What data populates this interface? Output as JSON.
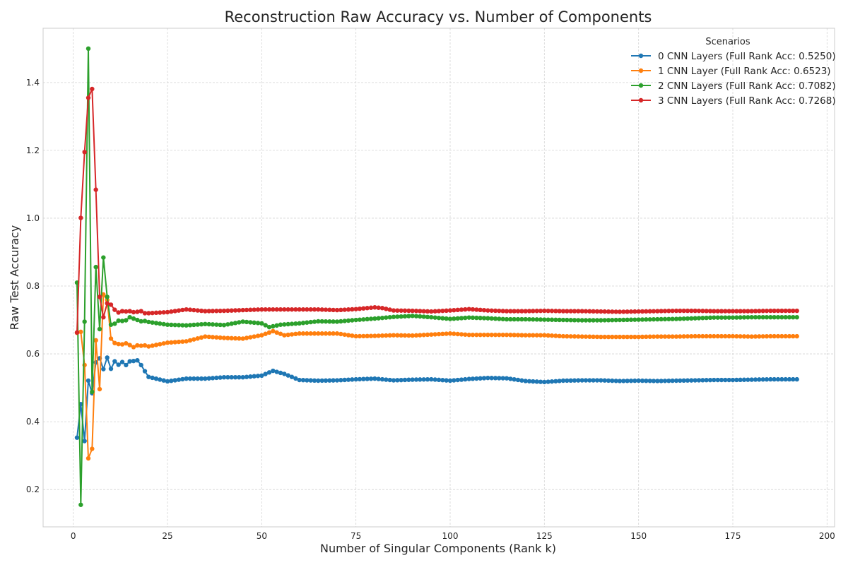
{
  "chart_data": {
    "type": "line",
    "title": "Reconstruction Raw Accuracy vs. Number of Components",
    "xlabel": "Number of Singular Components (Rank k)",
    "ylabel": "Raw Test Accuracy",
    "xlim": [
      -8,
      202
    ],
    "ylim": [
      0.09,
      1.56
    ],
    "xticks": [
      0,
      25,
      50,
      75,
      100,
      125,
      150,
      175,
      200
    ],
    "yticks": [
      0.2,
      0.4,
      0.6,
      0.8,
      1.0,
      1.2,
      1.4
    ],
    "xtick_labels": [
      "0",
      "25",
      "50",
      "75",
      "100",
      "125",
      "150",
      "175",
      "200"
    ],
    "ytick_labels": [
      "0.2",
      "0.4",
      "0.6",
      "0.8",
      "1.0",
      "1.2",
      "1.4"
    ],
    "grid": true,
    "legend": {
      "title": "Scenarios",
      "placement": "top-right"
    },
    "series": [
      {
        "name": "0 CNN Layers (Full Rank Acc: 0.5250)",
        "color": "#1f77b4",
        "points": [
          [
            1,
            0.353
          ],
          [
            2,
            0.452
          ],
          [
            3,
            0.343
          ],
          [
            4,
            0.521
          ],
          [
            5,
            0.484
          ],
          [
            6,
            0.575
          ],
          [
            7,
            0.587
          ],
          [
            8,
            0.555
          ],
          [
            9,
            0.589
          ],
          [
            10,
            0.556
          ],
          [
            11,
            0.578
          ],
          [
            12,
            0.568
          ],
          [
            13,
            0.576
          ],
          [
            14,
            0.567
          ],
          [
            15,
            0.578
          ],
          [
            16,
            0.579
          ],
          [
            17,
            0.581
          ],
          [
            18,
            0.567
          ],
          [
            19,
            0.549
          ],
          [
            20,
            0.532
          ],
          [
            25,
            0.519
          ],
          [
            30,
            0.527
          ],
          [
            35,
            0.527
          ],
          [
            40,
            0.531
          ],
          [
            45,
            0.531
          ],
          [
            50,
            0.536
          ],
          [
            53,
            0.55
          ],
          [
            56,
            0.541
          ],
          [
            60,
            0.523
          ],
          [
            65,
            0.521
          ],
          [
            70,
            0.522
          ],
          [
            75,
            0.525
          ],
          [
            80,
            0.527
          ],
          [
            85,
            0.522
          ],
          [
            90,
            0.524
          ],
          [
            95,
            0.525
          ],
          [
            100,
            0.521
          ],
          [
            105,
            0.526
          ],
          [
            110,
            0.529
          ],
          [
            115,
            0.528
          ],
          [
            120,
            0.52
          ],
          [
            125,
            0.517
          ],
          [
            130,
            0.521
          ],
          [
            135,
            0.522
          ],
          [
            140,
            0.522
          ],
          [
            145,
            0.52
          ],
          [
            150,
            0.521
          ],
          [
            155,
            0.52
          ],
          [
            160,
            0.521
          ],
          [
            165,
            0.522
          ],
          [
            170,
            0.523
          ],
          [
            175,
            0.523
          ],
          [
            180,
            0.524
          ],
          [
            185,
            0.525
          ],
          [
            192,
            0.525
          ]
        ]
      },
      {
        "name": "1 CNN Layer (Full Rank Acc: 0.6523)",
        "color": "#ff7f0e",
        "points": [
          [
            1,
            0.662
          ],
          [
            2,
            0.665
          ],
          [
            3,
            0.567
          ],
          [
            4,
            0.292
          ],
          [
            5,
            0.32
          ],
          [
            6,
            0.64
          ],
          [
            7,
            0.496
          ],
          [
            8,
            0.775
          ],
          [
            9,
            0.759
          ],
          [
            10,
            0.645
          ],
          [
            11,
            0.632
          ],
          [
            12,
            0.629
          ],
          [
            13,
            0.628
          ],
          [
            14,
            0.631
          ],
          [
            15,
            0.626
          ],
          [
            16,
            0.62
          ],
          [
            17,
            0.625
          ],
          [
            18,
            0.624
          ],
          [
            19,
            0.625
          ],
          [
            20,
            0.622
          ],
          [
            25,
            0.633
          ],
          [
            30,
            0.637
          ],
          [
            35,
            0.651
          ],
          [
            40,
            0.647
          ],
          [
            45,
            0.645
          ],
          [
            50,
            0.655
          ],
          [
            53,
            0.667
          ],
          [
            56,
            0.655
          ],
          [
            60,
            0.66
          ],
          [
            65,
            0.66
          ],
          [
            70,
            0.66
          ],
          [
            75,
            0.652
          ],
          [
            80,
            0.653
          ],
          [
            85,
            0.655
          ],
          [
            90,
            0.654
          ],
          [
            95,
            0.657
          ],
          [
            100,
            0.66
          ],
          [
            105,
            0.656
          ],
          [
            110,
            0.656
          ],
          [
            115,
            0.656
          ],
          [
            120,
            0.655
          ],
          [
            125,
            0.655
          ],
          [
            130,
            0.652
          ],
          [
            135,
            0.651
          ],
          [
            140,
            0.65
          ],
          [
            145,
            0.65
          ],
          [
            150,
            0.65
          ],
          [
            155,
            0.651
          ],
          [
            160,
            0.651
          ],
          [
            165,
            0.652
          ],
          [
            170,
            0.652
          ],
          [
            175,
            0.652
          ],
          [
            180,
            0.651
          ],
          [
            185,
            0.652
          ],
          [
            192,
            0.652
          ]
        ]
      },
      {
        "name": "2 CNN Layers (Full Rank Acc: 0.7082)",
        "color": "#2ca02c",
        "points": [
          [
            1,
            0.81
          ],
          [
            2,
            0.155
          ],
          [
            3,
            0.695
          ],
          [
            4,
            1.5
          ],
          [
            5,
            0.488
          ],
          [
            6,
            0.856
          ],
          [
            7,
            0.673
          ],
          [
            8,
            0.884
          ],
          [
            9,
            0.768
          ],
          [
            10,
            0.686
          ],
          [
            11,
            0.689
          ],
          [
            12,
            0.698
          ],
          [
            13,
            0.697
          ],
          [
            14,
            0.699
          ],
          [
            15,
            0.708
          ],
          [
            16,
            0.704
          ],
          [
            17,
            0.7
          ],
          [
            18,
            0.696
          ],
          [
            19,
            0.697
          ],
          [
            20,
            0.694
          ],
          [
            25,
            0.686
          ],
          [
            30,
            0.684
          ],
          [
            35,
            0.688
          ],
          [
            40,
            0.685
          ],
          [
            45,
            0.695
          ],
          [
            50,
            0.69
          ],
          [
            52,
            0.679
          ],
          [
            55,
            0.686
          ],
          [
            60,
            0.69
          ],
          [
            65,
            0.696
          ],
          [
            70,
            0.695
          ],
          [
            75,
            0.7
          ],
          [
            80,
            0.704
          ],
          [
            85,
            0.709
          ],
          [
            90,
            0.712
          ],
          [
            95,
            0.708
          ],
          [
            100,
            0.703
          ],
          [
            105,
            0.707
          ],
          [
            110,
            0.705
          ],
          [
            115,
            0.702
          ],
          [
            120,
            0.702
          ],
          [
            125,
            0.701
          ],
          [
            130,
            0.7
          ],
          [
            135,
            0.699
          ],
          [
            140,
            0.699
          ],
          [
            145,
            0.7
          ],
          [
            150,
            0.701
          ],
          [
            155,
            0.702
          ],
          [
            160,
            0.703
          ],
          [
            165,
            0.705
          ],
          [
            170,
            0.707
          ],
          [
            175,
            0.707
          ],
          [
            180,
            0.708
          ],
          [
            185,
            0.708
          ],
          [
            192,
            0.708
          ]
        ]
      },
      {
        "name": "3 CNN Layers (Full Rank Acc: 0.7268)",
        "color": "#d62728",
        "points": [
          [
            1,
            0.663
          ],
          [
            2,
            1.001
          ],
          [
            3,
            1.195
          ],
          [
            4,
            1.355
          ],
          [
            5,
            1.381
          ],
          [
            6,
            1.084
          ],
          [
            7,
            0.768
          ],
          [
            8,
            0.708
          ],
          [
            9,
            0.749
          ],
          [
            10,
            0.745
          ],
          [
            11,
            0.73
          ],
          [
            12,
            0.722
          ],
          [
            13,
            0.726
          ],
          [
            14,
            0.725
          ],
          [
            15,
            0.726
          ],
          [
            16,
            0.723
          ],
          [
            17,
            0.724
          ],
          [
            18,
            0.726
          ],
          [
            19,
            0.72
          ],
          [
            20,
            0.72
          ],
          [
            25,
            0.723
          ],
          [
            30,
            0.731
          ],
          [
            35,
            0.726
          ],
          [
            40,
            0.727
          ],
          [
            45,
            0.729
          ],
          [
            50,
            0.731
          ],
          [
            55,
            0.731
          ],
          [
            60,
            0.731
          ],
          [
            65,
            0.731
          ],
          [
            70,
            0.729
          ],
          [
            75,
            0.732
          ],
          [
            80,
            0.737
          ],
          [
            82,
            0.735
          ],
          [
            85,
            0.728
          ],
          [
            90,
            0.727
          ],
          [
            95,
            0.725
          ],
          [
            100,
            0.728
          ],
          [
            105,
            0.732
          ],
          [
            110,
            0.728
          ],
          [
            115,
            0.726
          ],
          [
            120,
            0.726
          ],
          [
            125,
            0.727
          ],
          [
            130,
            0.726
          ],
          [
            135,
            0.726
          ],
          [
            140,
            0.725
          ],
          [
            145,
            0.724
          ],
          [
            150,
            0.725
          ],
          [
            155,
            0.726
          ],
          [
            160,
            0.727
          ],
          [
            165,
            0.727
          ],
          [
            170,
            0.726
          ],
          [
            175,
            0.726
          ],
          [
            180,
            0.726
          ],
          [
            185,
            0.727
          ],
          [
            192,
            0.727
          ]
        ]
      }
    ]
  }
}
